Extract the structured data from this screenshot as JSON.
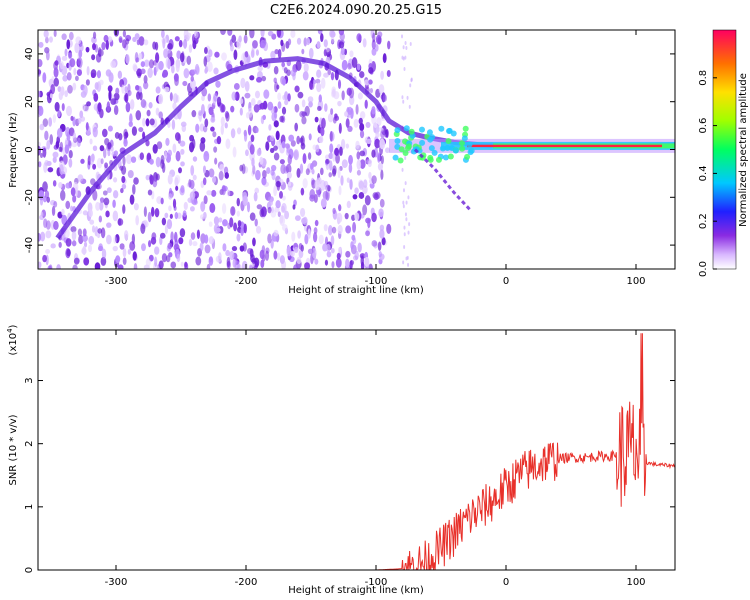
{
  "title": "C2E6.2024.090.20.25.G15",
  "chart_data": [
    {
      "type": "heatmap",
      "xlabel": "Height of straight line (km)",
      "ylabel": "Frequency (Hz)",
      "xlim": [
        -360,
        130
      ],
      "ylim": [
        -50,
        50
      ],
      "xticks": [
        -300,
        -200,
        -100,
        0,
        100
      ],
      "yticks": [
        -40,
        -20,
        0,
        20,
        40
      ],
      "grid": false,
      "colorbar": {
        "label": "Normalized spectral amplitude",
        "range": [
          0.0,
          1.0
        ],
        "ticks": [
          0.0,
          0.2,
          0.4,
          0.6,
          0.8
        ],
        "colormap": "rainbow (violet to red)"
      },
      "features": {
        "noise_region_x": [
          -360,
          -90
        ],
        "arc_points": [
          {
            "x": -345,
            "y": -37
          },
          {
            "x": -320,
            "y": -18
          },
          {
            "x": -295,
            "y": -2
          },
          {
            "x": -270,
            "y": 7
          },
          {
            "x": -250,
            "y": 18
          },
          {
            "x": -230,
            "y": 28
          },
          {
            "x": -210,
            "y": 33
          },
          {
            "x": -185,
            "y": 37
          },
          {
            "x": -160,
            "y": 38
          },
          {
            "x": -140,
            "y": 36
          },
          {
            "x": -120,
            "y": 30
          },
          {
            "x": -100,
            "y": 20
          },
          {
            "x": -90,
            "y": 12
          },
          {
            "x": -75,
            "y": 7
          },
          {
            "x": -60,
            "y": 5
          },
          {
            "x": -40,
            "y": 3
          },
          {
            "x": -20,
            "y": 2
          },
          {
            "x": 0,
            "y": 1.5
          },
          {
            "x": 50,
            "y": 1.5
          },
          {
            "x": 100,
            "y": 1.5
          },
          {
            "x": 130,
            "y": 2
          }
        ],
        "branch_points": [
          {
            "x": -70,
            "y": 0
          },
          {
            "x": -55,
            "y": -8
          },
          {
            "x": -40,
            "y": -18
          },
          {
            "x": -28,
            "y": -25
          }
        ]
      }
    },
    {
      "type": "line",
      "xlabel": "Height of straight line (km)",
      "ylabel": "SNR (10 * v/v)",
      "y_multiplier": "(x10",
      "y_multiplier_exp": "4",
      "y_multiplier_close": ")",
      "xlim": [
        -360,
        130
      ],
      "ylim": [
        0,
        3.8
      ],
      "xticks": [
        -300,
        -200,
        -100,
        0,
        100
      ],
      "yticks": [
        0,
        1,
        2,
        3
      ],
      "color": "#e8302a",
      "series": [
        {
          "x": [
            -360,
            -300,
            -200,
            -100,
            -80,
            -70,
            -60,
            -50,
            -40,
            -30,
            -20,
            -10,
            0,
            10,
            20,
            30,
            40,
            50,
            60,
            70,
            80,
            90,
            100,
            104,
            108,
            115,
            130
          ],
          "values": [
            0.0,
            0.0,
            0.0,
            0.0,
            0.02,
            0.05,
            0.15,
            0.35,
            0.55,
            0.8,
            0.95,
            1.1,
            1.3,
            1.5,
            1.62,
            1.72,
            1.76,
            1.78,
            1.78,
            1.8,
            1.8,
            1.85,
            1.9,
            1.6,
            1.7,
            1.67,
            1.65
          ]
        }
      ]
    }
  ]
}
